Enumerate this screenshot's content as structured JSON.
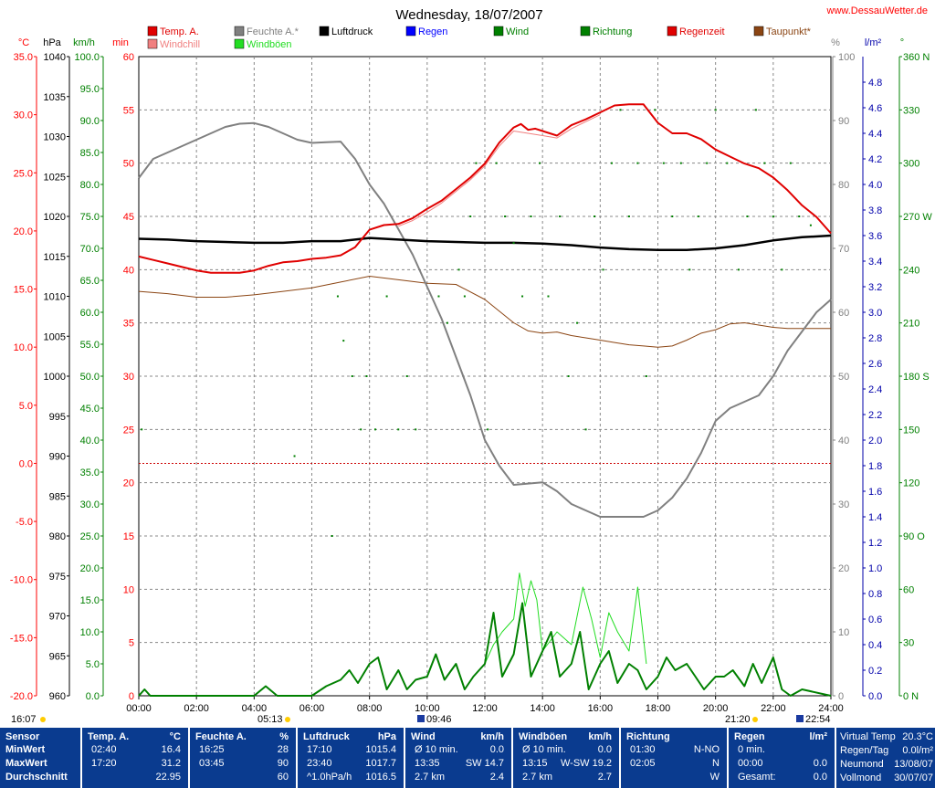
{
  "header": {
    "title": "Wednesday, 18/07/2007",
    "site": "www.DessauWetter.de"
  },
  "legend": [
    {
      "label": "Temp. A.",
      "color": "#e00000"
    },
    {
      "label": "Windchill",
      "color": "#f08080"
    },
    {
      "label": "Feuchte A.*",
      "color": "#808080"
    },
    {
      "label": "Windböen",
      "color": "#22dd22"
    },
    {
      "label": "Luftdruck",
      "color": "#000000"
    },
    {
      "label": "Regen",
      "color": "#0000ff"
    },
    {
      "label": "Wind",
      "color": "#008000"
    },
    {
      "label": "Richtung",
      "color": "#008000"
    },
    {
      "label": "Regenzeit",
      "color": "#e00000"
    },
    {
      "label": "Taupunkt*",
      "color": "#8b4513"
    }
  ],
  "axes": {
    "units": {
      "temp": "°C",
      "pressure": "hPa",
      "wind": "km/h",
      "rain_time": "min",
      "humidity": "%",
      "rain": "l/m²",
      "direction": "°"
    },
    "temp_ticks": [
      "35.0",
      "30.0",
      "25.0",
      "20.0",
      "15.0",
      "10.0",
      "5.0",
      "0.0",
      "-5.0",
      "-10.0",
      "-15.0",
      "-20.0"
    ],
    "pressure_ticks": [
      "1040",
      "1035",
      "1030",
      "1025",
      "1020",
      "1015",
      "1010",
      "1005",
      "1000",
      "995",
      "990",
      "985",
      "980",
      "975",
      "970",
      "965",
      "960"
    ],
    "wind_ticks": [
      "100.0",
      "95.0",
      "90.0",
      "85.0",
      "80.0",
      "75.0",
      "70.0",
      "65.0",
      "60.0",
      "55.0",
      "50.0",
      "45.0",
      "40.0",
      "35.0",
      "30.0",
      "25.0",
      "20.0",
      "15.0",
      "10.0",
      "5.0",
      "0.0"
    ],
    "min_ticks": [
      "60",
      "55",
      "50",
      "45",
      "40",
      "35",
      "30",
      "25",
      "20",
      "15",
      "10",
      "5",
      "0"
    ],
    "humidity_ticks": [
      "100",
      "90",
      "80",
      "70",
      "60",
      "50",
      "40",
      "30",
      "20",
      "10",
      "0"
    ],
    "rain_ticks": [
      "4.8",
      "4.6",
      "4.4",
      "4.2",
      "4.0",
      "3.8",
      "3.6",
      "3.4",
      "3.2",
      "3.0",
      "2.8",
      "2.6",
      "2.4",
      "2.2",
      "2.0",
      "1.8",
      "1.6",
      "1.4",
      "1.2",
      "1.0",
      "0.8",
      "0.6",
      "0.4",
      "0.2",
      "0.0"
    ],
    "direction_ticks": [
      "360 N",
      "330",
      "300",
      "270 W",
      "240",
      "210",
      "180 S",
      "150",
      "120",
      "90 O",
      "60",
      "30",
      "0 N"
    ],
    "time_ticks": [
      "00:00",
      "02:00",
      "04:00",
      "06:00",
      "08:00",
      "10:00",
      "12:00",
      "14:00",
      "16:00",
      "18:00",
      "20:00",
      "22:00",
      "24:00"
    ]
  },
  "sun_moon": {
    "moonset": "16:07",
    "sunrise": "05:13",
    "moonrise": "09:46",
    "sunset": "21:20",
    "moonset2": "22:54"
  },
  "chart_data": {
    "type": "line",
    "x_unit": "hours",
    "xlim": [
      0,
      24
    ],
    "series": [
      {
        "name": "Temp. A.",
        "axis": "°C",
        "color": "#e00000",
        "x": [
          0,
          0.5,
          1,
          1.5,
          2,
          2.5,
          3,
          3.5,
          4,
          4.5,
          5,
          5.5,
          6,
          6.5,
          7,
          7.5,
          8,
          8.5,
          9,
          9.5,
          10,
          10.5,
          11,
          11.5,
          12,
          12.5,
          13,
          13.25,
          13.5,
          13.75,
          14,
          14.5,
          15,
          15.5,
          16,
          16.5,
          17,
          17.5,
          18,
          18.5,
          19,
          19.5,
          20,
          20.5,
          21,
          21.5,
          22,
          22.5,
          23,
          23.5,
          24
        ],
        "y": [
          17.8,
          17.5,
          17.2,
          16.9,
          16.6,
          16.4,
          16.4,
          16.4,
          16.6,
          17,
          17.3,
          17.4,
          17.6,
          17.7,
          17.9,
          18.6,
          20.1,
          20.5,
          20.6,
          21.1,
          21.9,
          22.6,
          23.6,
          24.6,
          25.8,
          27.6,
          28.9,
          29.2,
          28.7,
          28.8,
          28.6,
          28.2,
          29.1,
          29.6,
          30.2,
          30.8,
          30.9,
          30.9,
          29.3,
          28.4,
          28.4,
          27.9,
          27.0,
          26.4,
          25.8,
          25.4,
          24.6,
          23.5,
          22.2,
          21.2,
          19.8
        ]
      },
      {
        "name": "Windchill",
        "axis": "°C",
        "color": "#f08080",
        "x": [
          9,
          9.5,
          10,
          10.5,
          11,
          11.5,
          12,
          12.5,
          13,
          13.5,
          14,
          14.5,
          15,
          15.5,
          16
        ],
        "y": [
          20.4,
          20.9,
          21.6,
          22.4,
          23.4,
          24.4,
          25.6,
          27.3,
          28.6,
          28.4,
          28.2,
          28.0,
          28.8,
          29.4,
          30.0
        ]
      },
      {
        "name": "Feuchte A.*",
        "axis": "%",
        "color": "#808080",
        "x": [
          0,
          0.5,
          1,
          1.5,
          2,
          2.5,
          3,
          3.5,
          4,
          4.5,
          5,
          5.5,
          6,
          6.5,
          7,
          7.5,
          8,
          8.5,
          9,
          9.5,
          10,
          10.5,
          11,
          11.5,
          12,
          12.5,
          13,
          13.5,
          14,
          14.5,
          15,
          15.5,
          16,
          16.5,
          17,
          17.5,
          18,
          18.5,
          19,
          19.5,
          20,
          20.5,
          21,
          21.5,
          22,
          22.5,
          23,
          23.5,
          24
        ],
        "y": [
          81,
          84,
          85,
          86,
          87,
          88,
          89,
          89.5,
          89.6,
          89,
          88,
          87,
          86.5,
          86.6,
          86.7,
          84,
          80,
          77,
          73,
          69,
          64,
          59,
          53,
          47,
          40,
          36,
          33,
          33.2,
          33.4,
          32,
          30,
          29,
          28,
          28,
          28,
          28,
          29,
          31,
          34,
          38,
          43,
          45,
          46,
          47,
          50,
          54,
          57,
          60,
          62
        ]
      },
      {
        "name": "Luftdruck",
        "axis": "hPa",
        "color": "#000000",
        "x": [
          0,
          1,
          2,
          3,
          4,
          5,
          6,
          7,
          8,
          9,
          10,
          11,
          12,
          13,
          14,
          15,
          16,
          17,
          18,
          19,
          20,
          21,
          22,
          23,
          24
        ],
        "y": [
          1017.2,
          1017.1,
          1016.9,
          1016.8,
          1016.7,
          1016.7,
          1016.9,
          1016.9,
          1017.3,
          1017.1,
          1016.9,
          1016.8,
          1016.7,
          1016.7,
          1016.6,
          1016.4,
          1016.1,
          1015.9,
          1015.8,
          1015.8,
          1016.0,
          1016.4,
          1017.0,
          1017.4,
          1017.6
        ]
      },
      {
        "name": "Taupunkt*",
        "axis": "°C",
        "color": "#8b4513",
        "x": [
          0,
          1,
          2,
          3,
          4,
          5,
          6,
          7,
          8,
          9,
          10,
          11,
          12,
          13,
          13.5,
          14,
          14.5,
          15,
          15.5,
          16,
          16.5,
          17,
          17.5,
          18,
          18.5,
          19,
          19.5,
          20,
          20.5,
          21,
          21.5,
          22,
          22.5,
          23,
          24
        ],
        "y": [
          14.8,
          14.6,
          14.3,
          14.3,
          14.5,
          14.8,
          15.1,
          15.6,
          16.1,
          15.8,
          15.5,
          15.4,
          14.1,
          12.1,
          11.4,
          11.2,
          11.3,
          11.0,
          10.8,
          10.6,
          10.4,
          10.2,
          10.1,
          10.0,
          10.1,
          10.6,
          11.2,
          11.5,
          12.0,
          12.1,
          11.9,
          11.7,
          11.6,
          11.6,
          11.6
        ]
      },
      {
        "name": "Windböen",
        "axis": "km/h",
        "color": "#22dd22",
        "x": [
          12,
          12.3,
          12.6,
          13,
          13.2,
          13.4,
          13.6,
          13.8,
          14,
          14.5,
          15,
          15.4,
          15.7,
          16,
          16.3,
          16.6,
          17,
          17.3,
          17.6
        ],
        "y": [
          5,
          8,
          10,
          12,
          19.2,
          14,
          18,
          15,
          7,
          10,
          8,
          17,
          12,
          6,
          13,
          10,
          7,
          17,
          5
        ]
      },
      {
        "name": "Wind",
        "axis": "km/h",
        "color": "#008000",
        "x": [
          0,
          0.2,
          0.4,
          4,
          4.4,
          4.8,
          6,
          6.5,
          7,
          7.3,
          7.6,
          8,
          8.3,
          8.6,
          9,
          9.3,
          9.6,
          10,
          10.3,
          10.6,
          11,
          11.3,
          11.6,
          12,
          12.3,
          12.6,
          13,
          13.3,
          13.6,
          14,
          14.3,
          14.6,
          15,
          15.3,
          15.6,
          16,
          16.3,
          16.6,
          17,
          17.3,
          17.6,
          18,
          18.3,
          18.6,
          19,
          19.3,
          19.6,
          20,
          20.3,
          20.6,
          21,
          21.3,
          21.6,
          22,
          22.3,
          22.6,
          23,
          24
        ],
        "y": [
          0,
          1,
          0,
          0,
          1.5,
          0,
          0,
          1.5,
          2.5,
          4,
          2,
          5,
          6,
          1,
          4,
          1,
          2.5,
          3,
          6.5,
          2.5,
          5,
          1,
          3,
          5,
          13,
          3,
          6.5,
          14.5,
          3,
          7,
          10,
          3,
          5,
          10,
          1,
          5,
          7,
          2,
          5,
          4,
          1,
          3,
          6,
          4,
          5,
          3,
          1,
          3,
          3,
          4,
          1.5,
          5,
          2,
          6,
          1,
          0,
          1,
          0
        ]
      }
    ],
    "direction_points": [
      {
        "t": 0.1,
        "deg": 150
      },
      {
        "t": 5.4,
        "deg": 135
      },
      {
        "t": 6.7,
        "deg": 90
      },
      {
        "t": 6.9,
        "deg": 225
      },
      {
        "t": 7.1,
        "deg": 200
      },
      {
        "t": 7.4,
        "deg": 180
      },
      {
        "t": 7.7,
        "deg": 150
      },
      {
        "t": 7.9,
        "deg": 180
      },
      {
        "t": 8.2,
        "deg": 150
      },
      {
        "t": 8.6,
        "deg": 225
      },
      {
        "t": 9.0,
        "deg": 150
      },
      {
        "t": 9.3,
        "deg": 180
      },
      {
        "t": 9.6,
        "deg": 150
      },
      {
        "t": 10.4,
        "deg": 225
      },
      {
        "t": 10.7,
        "deg": 210
      },
      {
        "t": 11.1,
        "deg": 240
      },
      {
        "t": 11.3,
        "deg": 225
      },
      {
        "t": 11.5,
        "deg": 270
      },
      {
        "t": 11.7,
        "deg": 300
      },
      {
        "t": 12.1,
        "deg": 150
      },
      {
        "t": 12.4,
        "deg": 300
      },
      {
        "t": 12.7,
        "deg": 270
      },
      {
        "t": 13.0,
        "deg": 255
      },
      {
        "t": 13.3,
        "deg": 225
      },
      {
        "t": 13.6,
        "deg": 270
      },
      {
        "t": 13.9,
        "deg": 300
      },
      {
        "t": 14.2,
        "deg": 225
      },
      {
        "t": 14.6,
        "deg": 270
      },
      {
        "t": 14.9,
        "deg": 180
      },
      {
        "t": 15.2,
        "deg": 210
      },
      {
        "t": 15.5,
        "deg": 150
      },
      {
        "t": 15.8,
        "deg": 270
      },
      {
        "t": 16.1,
        "deg": 240
      },
      {
        "t": 16.4,
        "deg": 300
      },
      {
        "t": 16.7,
        "deg": 330
      },
      {
        "t": 17.0,
        "deg": 270
      },
      {
        "t": 17.3,
        "deg": 300
      },
      {
        "t": 17.6,
        "deg": 180
      },
      {
        "t": 17.9,
        "deg": 330
      },
      {
        "t": 18.2,
        "deg": 300
      },
      {
        "t": 18.5,
        "deg": 270
      },
      {
        "t": 18.8,
        "deg": 300
      },
      {
        "t": 19.1,
        "deg": 240
      },
      {
        "t": 19.4,
        "deg": 270
      },
      {
        "t": 19.7,
        "deg": 300
      },
      {
        "t": 20.0,
        "deg": 330
      },
      {
        "t": 20.4,
        "deg": 300
      },
      {
        "t": 20.8,
        "deg": 240
      },
      {
        "t": 21.1,
        "deg": 270
      },
      {
        "t": 21.4,
        "deg": 330
      },
      {
        "t": 21.7,
        "deg": 300
      },
      {
        "t": 22.0,
        "deg": 270
      },
      {
        "t": 22.3,
        "deg": 240
      },
      {
        "t": 22.6,
        "deg": 300
      },
      {
        "t": 22.9,
        "deg": 270
      },
      {
        "t": 23.3,
        "deg": 265
      }
    ]
  },
  "summary": {
    "columns": [
      {
        "id": "sensor",
        "title": "Sensor",
        "unit": "",
        "rows": [
          [
            "MinWert",
            ""
          ],
          [
            "MaxWert",
            ""
          ],
          [
            "Durchschnitt",
            ""
          ]
        ]
      },
      {
        "id": "temp",
        "title": "Temp. A.",
        "unit": "°C",
        "rows": [
          [
            "02:40",
            "16.4"
          ],
          [
            "17:20",
            "31.2"
          ],
          [
            "",
            "22.95"
          ]
        ]
      },
      {
        "id": "humidity",
        "title": "Feuchte A.",
        "unit": "%",
        "rows": [
          [
            "16:25",
            "28"
          ],
          [
            "03:45",
            "90"
          ],
          [
            "",
            "60"
          ]
        ]
      },
      {
        "id": "pressure",
        "title": "Luftdruck",
        "unit": "hPa",
        "rows": [
          [
            "17:10",
            "1015.4"
          ],
          [
            "23:40",
            "1017.7"
          ],
          [
            "^1.0hPa/h",
            "1016.5"
          ]
        ]
      },
      {
        "id": "wind",
        "title": "Wind",
        "unit": "km/h",
        "rows": [
          [
            "Ø 10 min.",
            "0.0"
          ],
          [
            "13:35",
            "SW 14.7"
          ],
          [
            "2.7 km",
            "2.4"
          ]
        ]
      },
      {
        "id": "gusts",
        "title": "Windböen",
        "unit": "km/h",
        "rows": [
          [
            "Ø 10 min.",
            "0.0"
          ],
          [
            "13:15",
            "W-SW 19.2"
          ],
          [
            "2.7 km",
            "2.7"
          ]
        ]
      },
      {
        "id": "direction",
        "title": "Richtung",
        "unit": "",
        "rows": [
          [
            "01:30",
            "N-NO"
          ],
          [
            "02:05",
            "N"
          ],
          [
            "",
            "W"
          ]
        ]
      },
      {
        "id": "rain",
        "title": "Regen",
        "unit": "l/m²",
        "rows": [
          [
            "0 min.",
            ""
          ],
          [
            "00:00",
            "0.0"
          ],
          [
            "Gesamt:",
            "0.0"
          ]
        ]
      }
    ],
    "extra": [
      [
        "Virtual Temp",
        "20.3°C"
      ],
      [
        "Regen/Tag",
        "0.0l/m²"
      ],
      [
        "Neumond",
        "13/08/07"
      ],
      [
        "Vollmond",
        "30/07/07"
      ]
    ]
  }
}
